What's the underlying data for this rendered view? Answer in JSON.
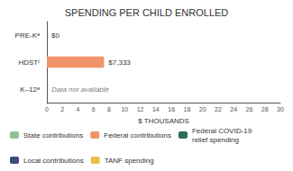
{
  "chart_data": {
    "type": "bar",
    "orientation": "horizontal",
    "title": "SPENDING PER CHILD ENROLLED",
    "categories": [
      "PRE-Kᵃ",
      "HDSTᵗ",
      "K–12ᵃ"
    ],
    "series": [
      {
        "name": "State contributions",
        "color": "#90c090",
        "values": [
          null,
          null,
          null
        ]
      },
      {
        "name": "Federal contributions",
        "color": "#f0946a",
        "values": [
          0,
          7.333,
          null
        ],
        "value_labels": [
          "$0",
          "$7,333",
          "Data not available"
        ]
      },
      {
        "name": "Federal COVID-19\nrelief spending",
        "color": "#2d6b5b",
        "values": [
          null,
          null,
          null
        ]
      },
      {
        "name": "Local contributions",
        "color": "#3a4f7a",
        "values": [
          null,
          null,
          null
        ]
      },
      {
        "name": "TANF spending",
        "color": "#e8c04a",
        "values": [
          null,
          null,
          null
        ]
      }
    ],
    "xlabel": "$ THOUSANDS",
    "xlim": [
      0,
      30
    ],
    "xticks": [
      0,
      2,
      4,
      6,
      8,
      10,
      12,
      14,
      16,
      18,
      20,
      22,
      24,
      26,
      28,
      30
    ],
    "grid": false,
    "data_labels": true,
    "legend": "bottom"
  }
}
